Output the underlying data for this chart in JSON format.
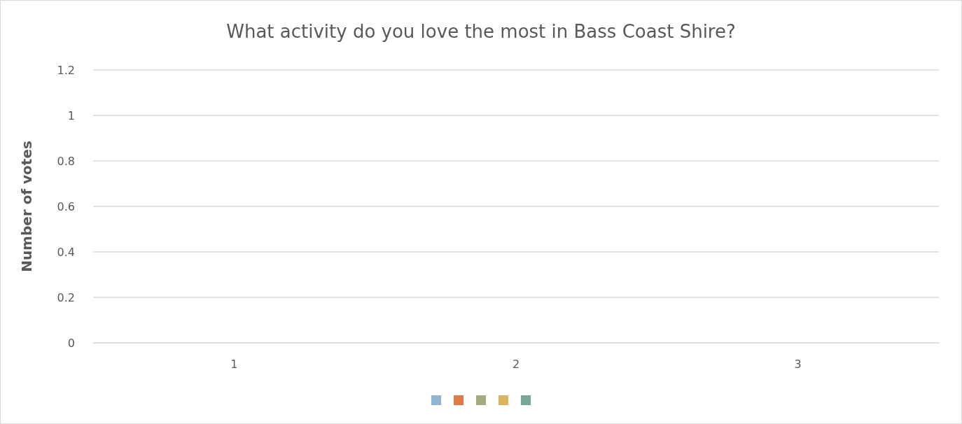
{
  "chart_data": {
    "type": "bar",
    "title": "What activity do you love the most in Bass Coast Shire?",
    "ylabel": "Number of votes",
    "categories": [
      "1",
      "2",
      "3"
    ],
    "series": [
      {
        "color": "#8fb4d4",
        "values": [
          null,
          null,
          null
        ]
      },
      {
        "color": "#e07b45",
        "values": [
          null,
          null,
          null
        ]
      },
      {
        "color": "#a3ab80",
        "values": [
          null,
          null,
          null
        ]
      },
      {
        "color": "#dbb35f",
        "values": [
          null,
          null,
          null
        ]
      },
      {
        "color": "#78a698",
        "values": [
          null,
          null,
          null
        ]
      }
    ],
    "ylim": [
      0,
      1.2
    ],
    "yticks": [
      0,
      0.2,
      0.4,
      0.6,
      0.8,
      1,
      1.2
    ],
    "grid": "y"
  }
}
